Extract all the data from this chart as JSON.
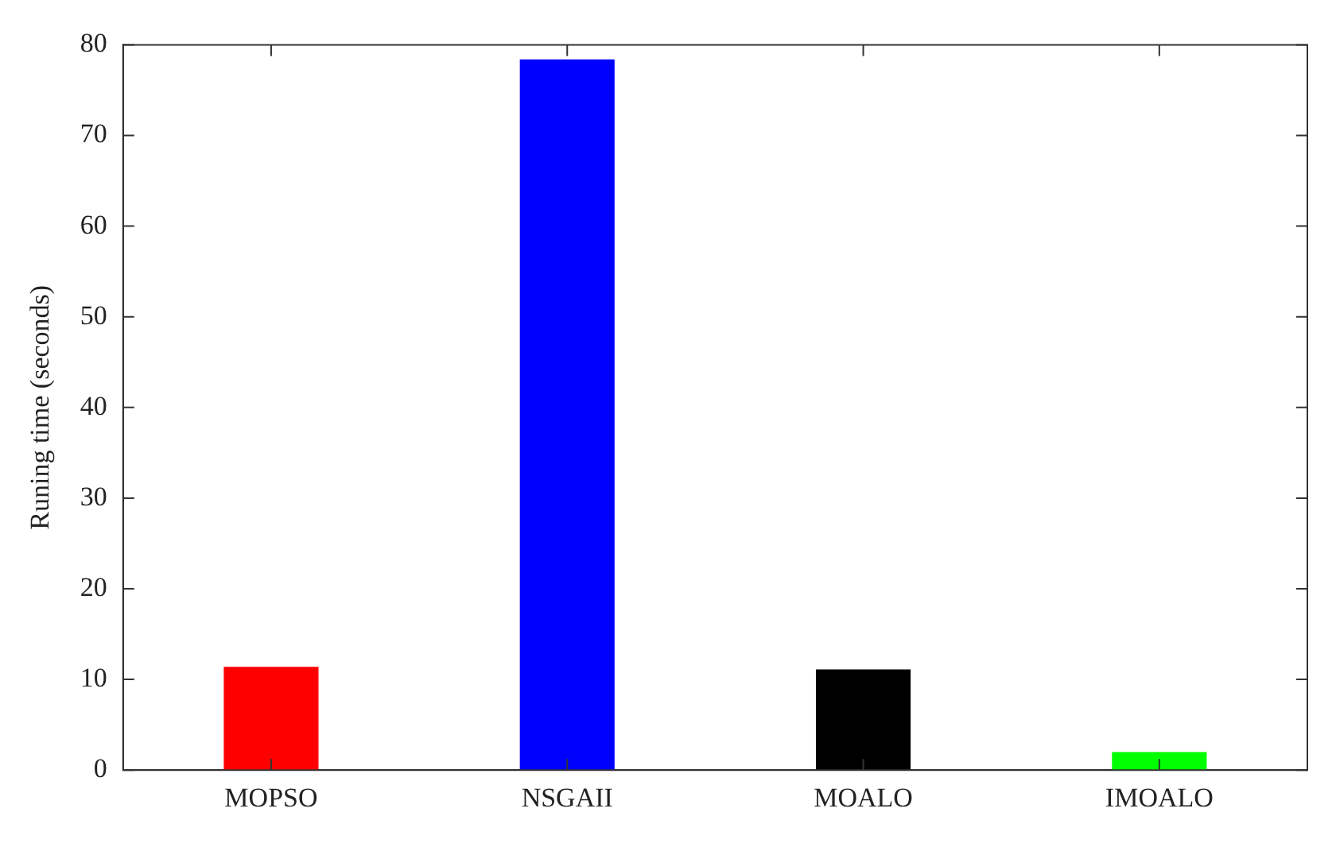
{
  "chart_data": {
    "type": "bar",
    "ylabel": "Runing time (seconds)",
    "categories": [
      "MOPSO",
      "NSGAII",
      "MOALO",
      "IMOALO"
    ],
    "values": [
      11.4,
      78.4,
      11.1,
      2.0
    ],
    "colors": [
      "#ff0000",
      "#0000ff",
      "#000000",
      "#00ff00"
    ],
    "ylim": [
      0,
      80
    ],
    "yticks": [
      0,
      10,
      20,
      30,
      40,
      50,
      60,
      70,
      80
    ],
    "grid": false,
    "legend": false
  }
}
